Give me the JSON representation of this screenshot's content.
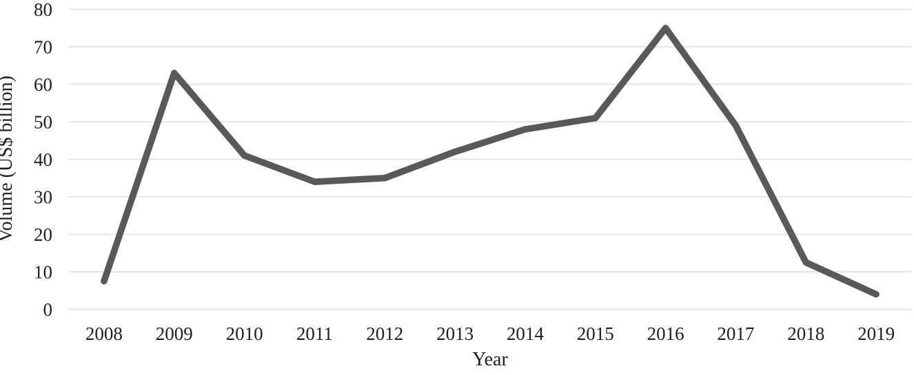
{
  "chart_data": {
    "type": "line",
    "title": "",
    "xlabel": "Year",
    "ylabel": "Volume (US$ billion)",
    "categories": [
      "2008",
      "2009",
      "2010",
      "2011",
      "2012",
      "2013",
      "2014",
      "2015",
      "2016",
      "2017",
      "2018",
      "2019"
    ],
    "series": [
      {
        "name": "Volume",
        "values": [
          7.5,
          63,
          41,
          34,
          35,
          42,
          48,
          51,
          75,
          49,
          12.5,
          4
        ]
      }
    ],
    "ylim": [
      0,
      80
    ],
    "ytick_step": 10,
    "yticks": [
      0,
      10,
      20,
      30,
      40,
      50,
      60,
      70,
      80
    ],
    "grid": "horizontal-only",
    "legend": "none",
    "line_color": "#595959",
    "gridline_color": "#e2e2e2",
    "text_color": "#1f1f1f",
    "background": "#ffffff"
  }
}
